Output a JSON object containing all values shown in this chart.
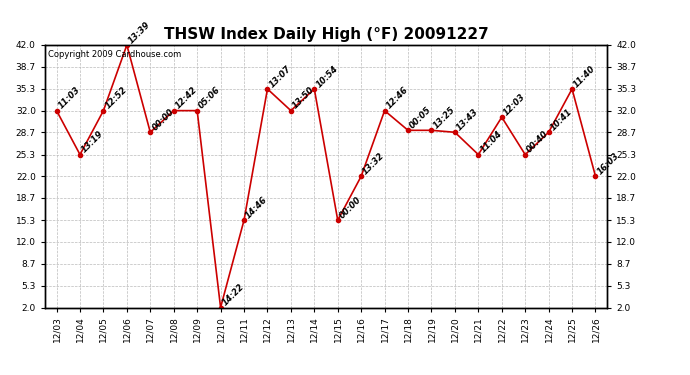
{
  "title": "THSW Index Daily High (°F) 20091227",
  "copyright": "Copyright 2009 Cardhouse.com",
  "dates": [
    "12/03",
    "12/04",
    "12/05",
    "12/06",
    "12/07",
    "12/08",
    "12/09",
    "12/10",
    "12/11",
    "12/12",
    "12/13",
    "12/14",
    "12/15",
    "12/16",
    "12/17",
    "12/18",
    "12/19",
    "12/20",
    "12/21",
    "12/22",
    "12/23",
    "12/24",
    "12/25",
    "12/26"
  ],
  "values": [
    32.0,
    25.3,
    32.0,
    42.0,
    28.7,
    32.0,
    32.0,
    2.0,
    15.3,
    35.3,
    32.0,
    35.3,
    15.3,
    22.0,
    32.0,
    29.0,
    29.0,
    28.7,
    25.3,
    31.0,
    25.3,
    28.7,
    35.3,
    22.0
  ],
  "annotations": [
    "11:03",
    "13:19",
    "12:52",
    "13:39",
    "00:00",
    "12:42",
    "05:06",
    "14:22",
    "14:46",
    "13:07",
    "13:50",
    "10:54",
    "00:00",
    "13:32",
    "12:46",
    "00:05",
    "13:25",
    "13:43",
    "11:04",
    "12:03",
    "00:40",
    "10:41",
    "11:40",
    "16:03"
  ],
  "ylim": [
    2.0,
    42.0
  ],
  "yticks": [
    2.0,
    5.3,
    8.7,
    12.0,
    15.3,
    18.7,
    22.0,
    25.3,
    28.7,
    32.0,
    35.3,
    38.7,
    42.0
  ],
  "line_color": "#cc0000",
  "marker_color": "#cc0000",
  "bg_color": "#ffffff",
  "grid_color": "#bbbbbb",
  "title_fontsize": 11,
  "annotation_fontsize": 6,
  "copyright_fontsize": 6,
  "tick_fontsize": 6.5
}
